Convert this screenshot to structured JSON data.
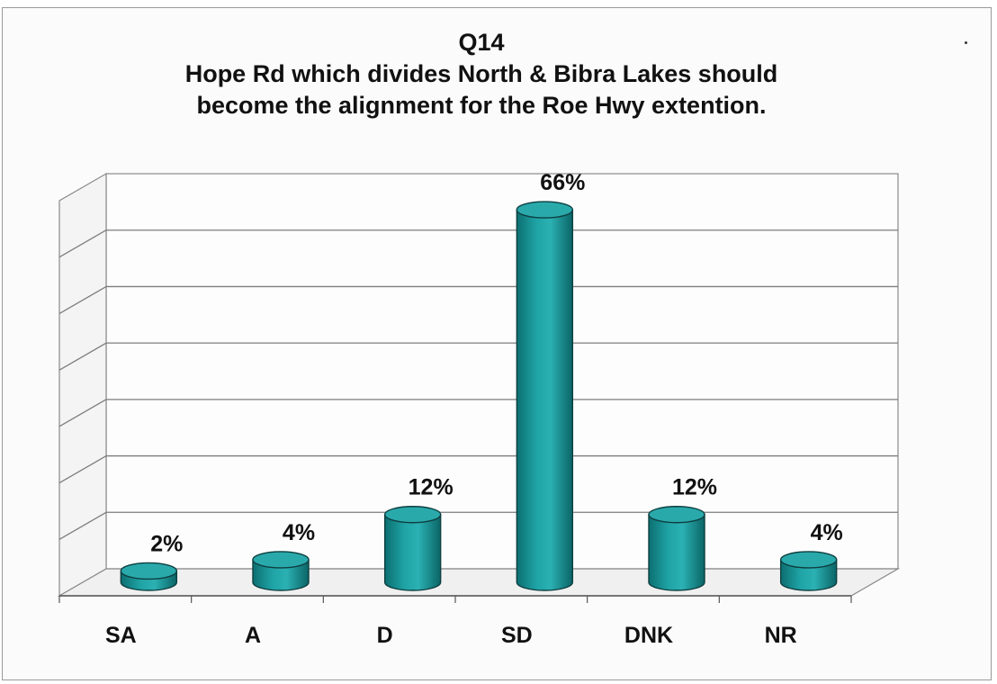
{
  "chart_data": {
    "type": "bar",
    "title": "Q14",
    "subtitle_lines": [
      "Hope Rd which divides North & Bibra Lakes should",
      "become the alignment for the Roe Hwy extention."
    ],
    "categories": [
      "SA",
      "A",
      "D",
      "SD",
      "DNK",
      "NR"
    ],
    "values": [
      2,
      4,
      12,
      66,
      12,
      4
    ],
    "data_labels": [
      "2%",
      "4%",
      "12%",
      "66%",
      "12%",
      "4%"
    ],
    "ylim": [
      0,
      70
    ],
    "grid": true,
    "legend": "none",
    "style": "3d-cylinder",
    "bar_color": "#1f9ea0"
  }
}
